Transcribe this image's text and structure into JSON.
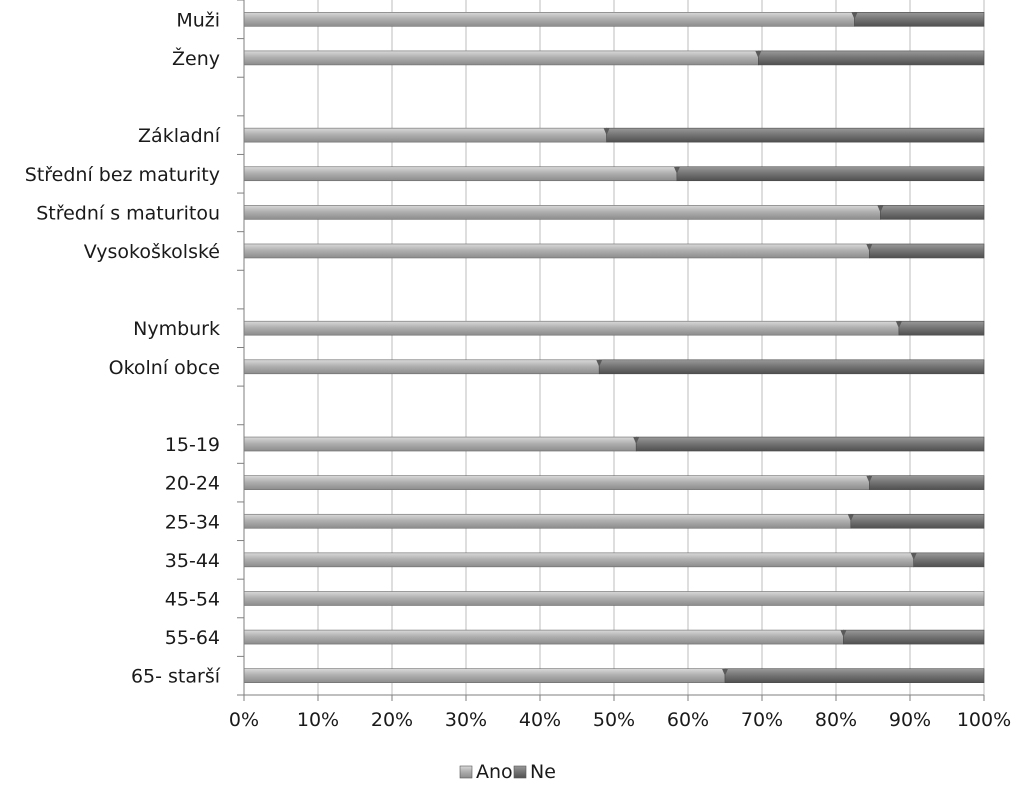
{
  "chart_data": {
    "type": "bar",
    "orientation": "horizontal",
    "stacked": "percent",
    "title": "",
    "xlabel": "",
    "ylabel": "",
    "xlim": [
      0,
      100
    ],
    "x_ticks": [
      "0%",
      "10%",
      "20%",
      "30%",
      "40%",
      "50%",
      "60%",
      "70%",
      "80%",
      "90%",
      "100%"
    ],
    "grid": true,
    "legend_position": "bottom",
    "slots": [
      {
        "label": "Muži",
        "ano": 82.5
      },
      {
        "label": "Ženy",
        "ano": 69.5
      },
      {
        "label": "",
        "ano": null
      },
      {
        "label": "Základní",
        "ano": 49.0
      },
      {
        "label": "Střední bez maturity",
        "ano": 58.5
      },
      {
        "label": "Střední s maturitou",
        "ano": 86.0
      },
      {
        "label": "Vysokoškolské",
        "ano": 84.5
      },
      {
        "label": "",
        "ano": null
      },
      {
        "label": "Nymburk",
        "ano": 88.5
      },
      {
        "label": "Okolní obce",
        "ano": 48.0
      },
      {
        "label": "",
        "ano": null
      },
      {
        "label": "15-19",
        "ano": 53.0
      },
      {
        "label": "20-24",
        "ano": 84.5
      },
      {
        "label": "25-34",
        "ano": 82.0
      },
      {
        "label": "35-44",
        "ano": 90.5
      },
      {
        "label": "45-54",
        "ano": 100.0
      },
      {
        "label": "55-64",
        "ano": 81.0
      },
      {
        "label": "65- starší",
        "ano": 65.0
      }
    ],
    "series": [
      {
        "name": "Ano",
        "color": "#a6a6a6"
      },
      {
        "name": "Ne",
        "color": "#737373"
      }
    ]
  }
}
